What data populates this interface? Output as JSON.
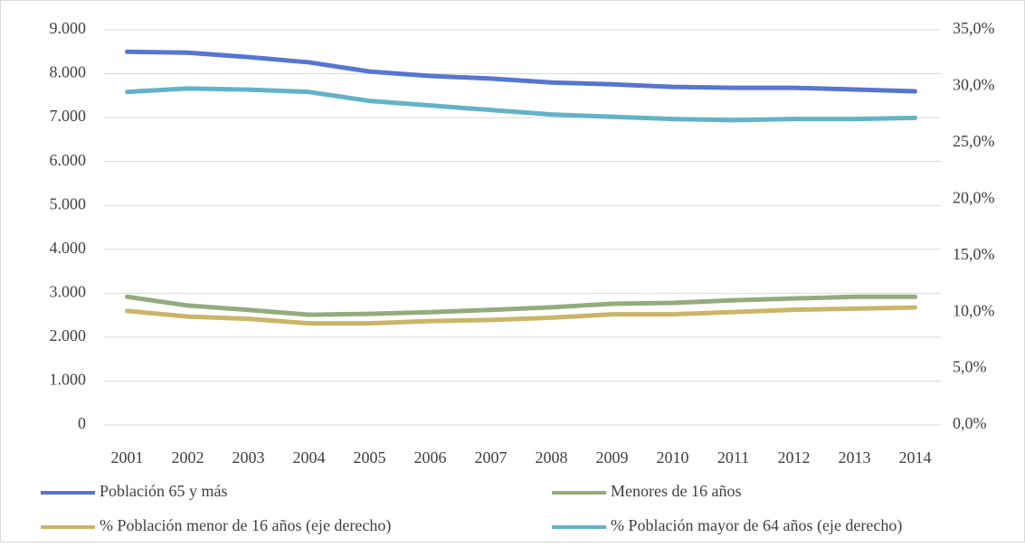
{
  "chart_data": {
    "type": "line",
    "categories": [
      "2001",
      "2002",
      "2003",
      "2004",
      "2005",
      "2006",
      "2007",
      "2008",
      "2009",
      "2010",
      "2011",
      "2012",
      "2013",
      "2014"
    ],
    "series": [
      {
        "name": "Población 65 y más",
        "color": "#5676cf",
        "values": [
          8500,
          8480,
          8380,
          8260,
          8050,
          7950,
          7890,
          7800,
          7760,
          7700,
          7680,
          7680,
          7640,
          7600
        ]
      },
      {
        "name": "Menores de 16 años",
        "color": "#93ab7d",
        "values": [
          2920,
          2720,
          2620,
          2510,
          2530,
          2570,
          2620,
          2680,
          2760,
          2780,
          2840,
          2880,
          2920,
          2920
        ]
      },
      {
        "name": "% Población menor de 16 años (eje derecho)",
        "color": "#cbb568",
        "axis": "y2",
        "values": [
          10.1,
          9.6,
          9.4,
          9.0,
          9.0,
          9.2,
          9.3,
          9.5,
          9.8,
          9.8,
          10.0,
          10.2,
          10.3,
          10.4
        ]
      },
      {
        "name": "% Población mayor de 64 años (eje derecho)",
        "color": "#62b3c9",
        "axis": "y2",
        "values": [
          29.5,
          29.8,
          29.7,
          29.5,
          28.7,
          28.3,
          27.9,
          27.5,
          27.3,
          27.1,
          27.0,
          27.1,
          27.1,
          27.2
        ]
      }
    ],
    "ylim": [
      0,
      9000
    ],
    "yticks": [
      0,
      {
        "value": 1000,
        "label": "1.000"
      },
      {
        "value": 2000,
        "label": "2.000"
      },
      {
        "value": 3000,
        "label": "3.000"
      },
      {
        "value": 4000,
        "label": "4.000"
      },
      {
        "value": 5000,
        "label": "5.000"
      },
      {
        "value": 6000,
        "label": "6.000"
      },
      {
        "value": 7000,
        "label": "7.000"
      },
      {
        "value": 8000,
        "label": "8.000"
      },
      {
        "value": 9000,
        "label": "9.000"
      }
    ],
    "y2lim": [
      0,
      35
    ],
    "y2ticks": [
      {
        "value": 0,
        "label": "0,0%"
      },
      {
        "value": 5,
        "label": "5,0%"
      },
      {
        "value": 10,
        "label": "10,0%"
      },
      {
        "value": 15,
        "label": "15,0%"
      },
      {
        "value": 20,
        "label": "20,0%"
      },
      {
        "value": 25,
        "label": "25,0%"
      },
      {
        "value": 30,
        "label": "30,0%"
      },
      {
        "value": 35,
        "label": "35,0%"
      }
    ],
    "grid": true,
    "legend": "bottom"
  }
}
